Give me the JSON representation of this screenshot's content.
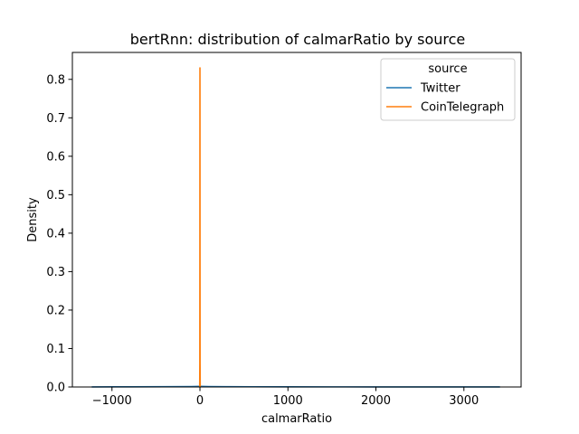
{
  "chart_data": {
    "type": "line",
    "title": "bertRnn: distribution of calmarRatio by source",
    "xlabel": "calmarRatio",
    "ylabel": "Density",
    "xlim": [
      -1450,
      3650
    ],
    "ylim": [
      0,
      0.87
    ],
    "x_ticks": [
      -1000,
      0,
      1000,
      2000,
      3000
    ],
    "x_tick_labels": [
      "−1000",
      "0",
      "1000",
      "2000",
      "3000"
    ],
    "y_ticks": [
      0.0,
      0.1,
      0.2,
      0.3,
      0.4,
      0.5,
      0.6,
      0.7,
      0.8
    ],
    "y_tick_labels": [
      "0.0",
      "0.1",
      "0.2",
      "0.3",
      "0.4",
      "0.5",
      "0.6",
      "0.7",
      "0.8"
    ],
    "grid": false,
    "legend": {
      "title": "source",
      "placement": "top-right"
    },
    "series": [
      {
        "name": "Twitter",
        "color": "#1f77b4",
        "x": [
          -1230,
          -800,
          -400,
          -100,
          0,
          100,
          300,
          600,
          1000,
          1500,
          2000,
          2500,
          3000,
          3410
        ],
        "y": [
          0.0002,
          0.0005,
          0.0008,
          0.0012,
          0.0015,
          0.0012,
          0.0009,
          0.0006,
          0.0004,
          0.0003,
          0.0002,
          0.0002,
          0.0002,
          0.0001
        ]
      },
      {
        "name": "CoinTelegraph",
        "color": "#ff7f0e",
        "x": [
          -3,
          -1.5,
          -0.8,
          -0.3,
          0,
          0.3,
          0.8,
          1.5,
          3
        ],
        "y": [
          0.0,
          0.06,
          0.35,
          0.78,
          0.83,
          0.78,
          0.35,
          0.06,
          0.0
        ]
      }
    ]
  }
}
